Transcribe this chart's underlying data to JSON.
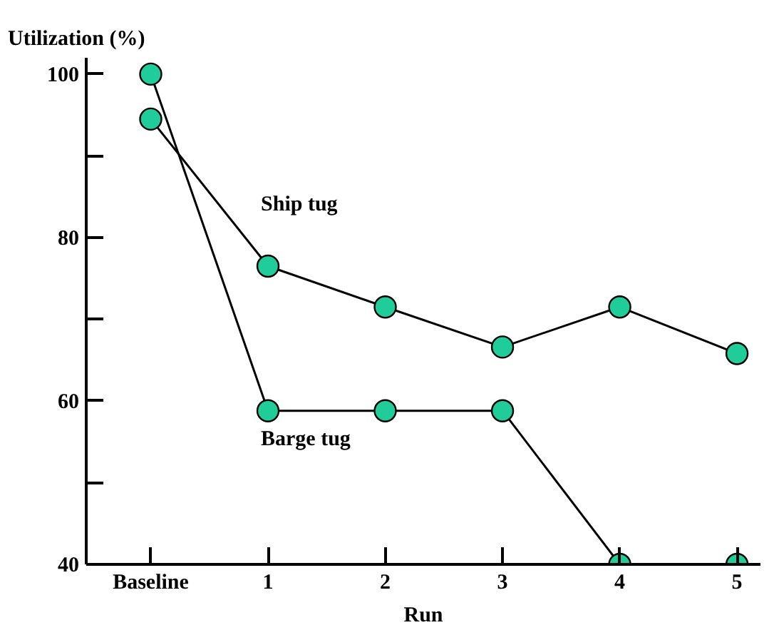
{
  "chart_data": {
    "type": "line",
    "ylabel": "Utilization (%)",
    "xlabel": "Run",
    "categories": [
      "Baseline",
      "1",
      "2",
      "3",
      "4",
      "5"
    ],
    "series": [
      {
        "name": "Ship tug",
        "color": "#1fcc9a",
        "values": [
          94.5,
          76.5,
          71.5,
          66.6,
          71.5,
          65.8
        ]
      },
      {
        "name": "Barge tug",
        "color": "#1fcc9a",
        "values": [
          100,
          58.8,
          58.8,
          58.8,
          40,
          40
        ]
      }
    ],
    "ylim": [
      40,
      102
    ],
    "yticks": [
      40,
      {
        "value": 50,
        "label": null
      },
      60,
      {
        "value": 70,
        "label": null
      },
      80,
      {
        "value": 90,
        "label": null
      },
      100
    ],
    "marker": "circle",
    "line_style": "solid",
    "grid": false
  }
}
